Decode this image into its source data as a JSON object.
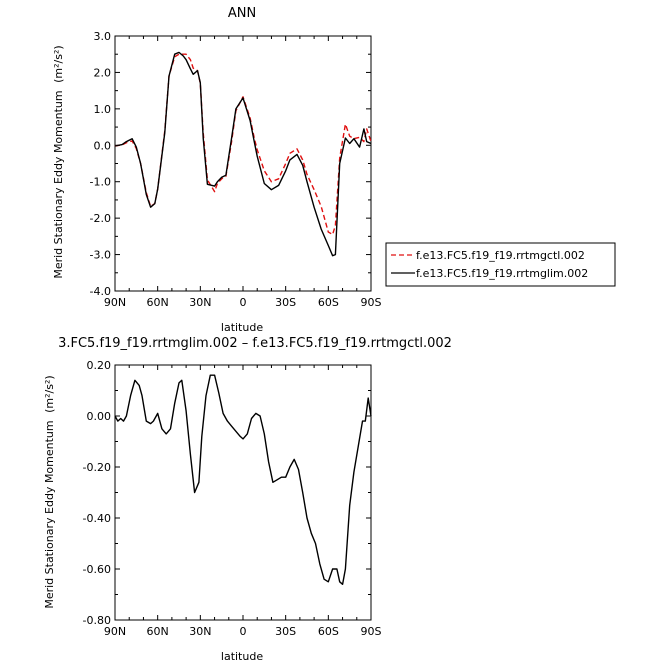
{
  "colors": {
    "ctl": "#e01010",
    "mglim": "#000000",
    "axis": "#000000"
  },
  "chart_data": [
    {
      "type": "line",
      "title": "ANN",
      "xlabel": "latitude",
      "ylabel": "Merid Stationary Eddy Momentum",
      "yunit": "(m²/s²)",
      "xlim": [
        -90,
        90
      ],
      "ylim": [
        -4.0,
        3.0
      ],
      "xticks": [
        -90,
        -60,
        -30,
        0,
        30,
        60,
        90
      ],
      "xtick_labels": [
        "90N",
        "60N",
        "30N",
        "0",
        "30S",
        "60S",
        "90S"
      ],
      "yticks": [
        -4.0,
        -3.0,
        -2.0,
        -1.0,
        0.0,
        1.0,
        2.0,
        3.0
      ],
      "ytick_labels": [
        "-4.0",
        "-3.0",
        "-2.0",
        "-1.0",
        "0.0",
        "1.0",
        "2.0",
        "3.0"
      ],
      "legend_position": "right",
      "series": [
        {
          "name": "f.e13.FC5.f19_f19.rrtmgctl.002",
          "style": "dashed",
          "color_key": "ctl",
          "x": [
            -90,
            -85,
            -82,
            -78,
            -75,
            -72,
            -68,
            -65,
            -62,
            -60,
            -55,
            -52,
            -48,
            -45,
            -42,
            -40,
            -37,
            -35,
            -32,
            -30,
            -28,
            -25,
            -20,
            -18,
            -15,
            -12,
            -8,
            -5,
            0,
            5,
            8,
            10,
            15,
            20,
            25,
            30,
            33,
            38,
            42,
            45,
            50,
            55,
            60,
            63,
            65,
            68,
            72,
            75,
            78,
            82,
            85,
            87,
            90
          ],
          "y": [
            -0.02,
            0.01,
            0.07,
            0.12,
            -0.09,
            -0.5,
            -1.3,
            -1.68,
            -1.6,
            -1.2,
            0.4,
            1.9,
            2.43,
            2.5,
            2.5,
            2.5,
            2.35,
            2.12,
            2.05,
            1.7,
            0.35,
            -0.95,
            -1.27,
            -1.05,
            -0.92,
            -0.85,
            0.1,
            0.95,
            1.33,
            0.75,
            0.18,
            -0.12,
            -0.7,
            -1.0,
            -0.92,
            -0.5,
            -0.22,
            -0.1,
            -0.4,
            -0.8,
            -1.22,
            -1.68,
            -2.38,
            -2.45,
            -2.2,
            -0.35,
            0.58,
            0.25,
            0.18,
            0.22,
            0.1,
            0.45,
            0.1
          ]
        },
        {
          "name": "f.e13.FC5.f19_f19.rrtmglim.002",
          "style": "solid",
          "color_key": "mglim",
          "x": [
            -90,
            -85,
            -82,
            -78,
            -75,
            -72,
            -68,
            -65,
            -62,
            -60,
            -55,
            -52,
            -48,
            -45,
            -42,
            -40,
            -37,
            -35,
            -32,
            -30,
            -28,
            -25,
            -20,
            -18,
            -15,
            -12,
            -8,
            -5,
            0,
            5,
            8,
            10,
            15,
            20,
            25,
            30,
            33,
            38,
            42,
            45,
            50,
            55,
            60,
            63,
            65,
            68,
            72,
            75,
            78,
            82,
            85,
            87,
            90
          ],
          "y": [
            -0.02,
            0.02,
            0.1,
            0.18,
            -0.05,
            -0.5,
            -1.35,
            -1.7,
            -1.6,
            -1.2,
            0.35,
            1.9,
            2.5,
            2.55,
            2.45,
            2.35,
            2.1,
            1.95,
            2.05,
            1.72,
            0.2,
            -1.07,
            -1.12,
            -1.0,
            -0.88,
            -0.82,
            0.2,
            1.0,
            1.3,
            0.68,
            0.08,
            -0.3,
            -1.05,
            -1.22,
            -1.1,
            -0.7,
            -0.4,
            -0.25,
            -0.55,
            -1.0,
            -1.7,
            -2.3,
            -2.75,
            -3.03,
            -3.0,
            -0.5,
            0.2,
            0.05,
            0.18,
            -0.05,
            0.45,
            0.1,
            0.05
          ]
        }
      ]
    },
    {
      "type": "line",
      "title": "3.FC5.f19_f19.rrtmglim.002 – f.e13.FC5.f19_f19.rrtmgctl.002",
      "xlabel": "latitude",
      "ylabel": "Merid Stationary Eddy Momentum",
      "yunit": "(m²/s²)",
      "xlim": [
        -90,
        90
      ],
      "ylim": [
        -0.8,
        0.2
      ],
      "xticks": [
        -90,
        -60,
        -30,
        0,
        30,
        60,
        90
      ],
      "xtick_labels": [
        "90N",
        "60N",
        "30N",
        "0",
        "30S",
        "60S",
        "90S"
      ],
      "yticks": [
        -0.8,
        -0.6,
        -0.4,
        -0.2,
        0.0,
        0.2
      ],
      "ytick_labels": [
        "-0.80",
        "-0.60",
        "-0.40",
        "-0.20",
        "0.00",
        "0.20"
      ],
      "series": [
        {
          "color_key": "mglim",
          "style": "solid",
          "x": [
            -90,
            -88,
            -86,
            -84,
            -82,
            -79,
            -76,
            -73,
            -71,
            -68,
            -65,
            -63,
            -60,
            -57,
            -54,
            -51,
            -48,
            -45,
            -43,
            -40,
            -37,
            -34,
            -31,
            -29,
            -26,
            -23,
            -20,
            -17,
            -14,
            -11,
            -8,
            -5,
            -2,
            0,
            3,
            6,
            9,
            12,
            15,
            18,
            21,
            24,
            27,
            30,
            33,
            36,
            39,
            42,
            45,
            48,
            51,
            54,
            57,
            60,
            63,
            66,
            68,
            70,
            72,
            75,
            78,
            81,
            84,
            86,
            88,
            90
          ],
          "y": [
            0.0,
            -0.02,
            -0.01,
            -0.02,
            0.0,
            0.08,
            0.14,
            0.12,
            0.08,
            -0.02,
            -0.03,
            -0.02,
            0.01,
            -0.05,
            -0.07,
            -0.05,
            0.05,
            0.13,
            0.14,
            0.02,
            -0.15,
            -0.3,
            -0.26,
            -0.08,
            0.08,
            0.16,
            0.16,
            0.09,
            0.01,
            -0.02,
            -0.04,
            -0.06,
            -0.08,
            -0.09,
            -0.07,
            -0.01,
            0.01,
            0.0,
            -0.07,
            -0.18,
            -0.26,
            -0.25,
            -0.24,
            -0.24,
            -0.2,
            -0.17,
            -0.21,
            -0.3,
            -0.4,
            -0.46,
            -0.5,
            -0.58,
            -0.64,
            -0.65,
            -0.6,
            -0.6,
            -0.65,
            -0.66,
            -0.6,
            -0.35,
            -0.22,
            -0.12,
            -0.02,
            -0.02,
            0.07,
            0.0
          ]
        }
      ]
    }
  ]
}
